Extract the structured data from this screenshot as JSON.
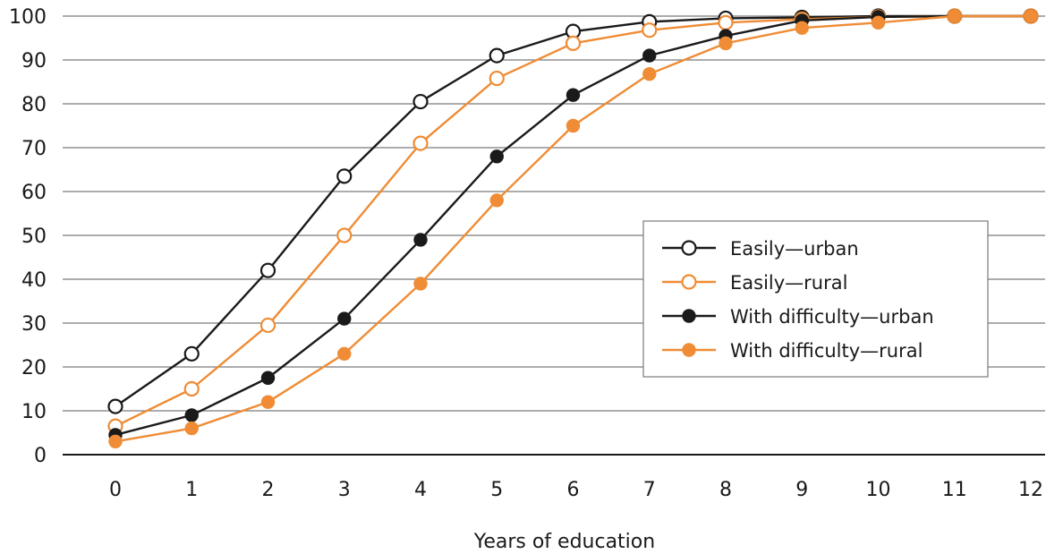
{
  "chart_data": {
    "type": "line",
    "title": "",
    "xlabel": "Years of education",
    "ylabel": "",
    "x": [
      0,
      1,
      2,
      3,
      4,
      5,
      6,
      7,
      8,
      9,
      10,
      11,
      12
    ],
    "xlim": [
      0,
      12
    ],
    "ylim": [
      0,
      100
    ],
    "yticks": [
      0,
      10,
      20,
      30,
      40,
      50,
      60,
      70,
      80,
      90,
      100
    ],
    "grid": "horizontal",
    "legend_position": "center-right",
    "series": [
      {
        "name": "Easily—urban",
        "color": "#1a1a1a",
        "marker": "open-circle",
        "values": [
          11,
          23,
          42,
          63.5,
          80.5,
          91,
          96.5,
          98.7,
          99.5,
          99.7,
          100,
          100,
          100
        ]
      },
      {
        "name": "Easily—rural",
        "color": "#ef8c35",
        "marker": "open-circle",
        "values": [
          6.5,
          15,
          29.5,
          50,
          71,
          85.8,
          93.8,
          96.8,
          98.5,
          99.3,
          99.8,
          100,
          100
        ]
      },
      {
        "name": "With difficulty—urban",
        "color": "#1a1a1a",
        "marker": "filled-circle",
        "values": [
          4.5,
          9,
          17.5,
          31,
          49,
          68,
          82,
          91,
          95.5,
          99,
          99.8,
          100,
          100
        ]
      },
      {
        "name": "With difficulty—rural",
        "color": "#ef8c35",
        "marker": "filled-circle",
        "values": [
          3,
          6,
          12,
          23,
          39,
          58,
          75,
          86.8,
          93.8,
          97.3,
          98.5,
          100,
          100
        ]
      }
    ]
  }
}
